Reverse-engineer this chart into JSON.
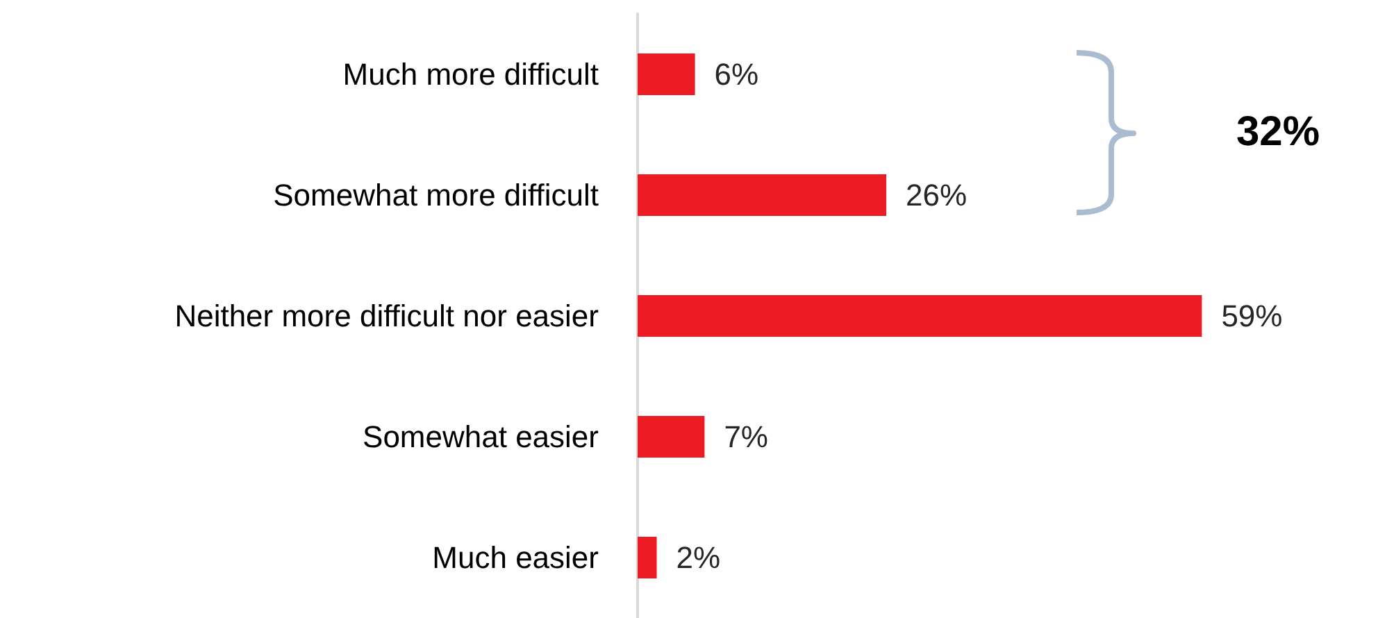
{
  "chart_data": {
    "type": "bar",
    "orientation": "horizontal",
    "categories": [
      "Much more difficult",
      "Somewhat more difficult",
      "Neither more difficult nor easier",
      "Somewhat easier",
      "Much easier"
    ],
    "values": [
      6,
      26,
      59,
      7,
      2
    ],
    "value_labels": [
      "6%",
      "26%",
      "59%",
      "7%",
      "2%"
    ],
    "color": "#ed1c24",
    "annotations": [
      "32%"
    ]
  }
}
